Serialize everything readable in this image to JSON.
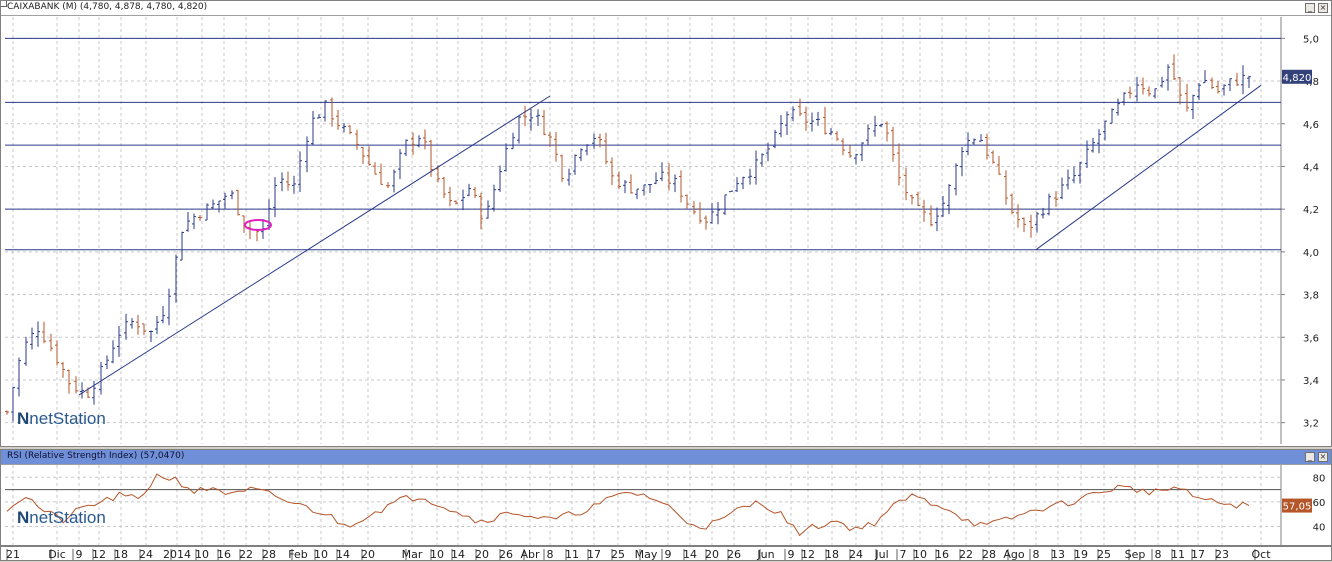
{
  "price_pane": {
    "title": "CAIXABANK (M) (4,780, 4,878, 4,780, 4,820)",
    "last_price_label": "4,820",
    "logo_text": "netStation",
    "price_ticks": [
      "5,0",
      "4,8",
      "4,6",
      "4,4",
      "4,2",
      "4,0",
      "3,8",
      "3,6",
      "3,4",
      "3,2"
    ]
  },
  "rsi_pane": {
    "title": "RSI (Relative Strength Index) (57,0470)",
    "last_value_label": "57,05",
    "logo_text": "netStation",
    "rsi_ticks": [
      "80",
      "60",
      "40"
    ]
  },
  "x_axis_labels": [
    "21",
    "Dic",
    "9",
    "12",
    "18",
    "24",
    "2014",
    "10",
    "16",
    "22",
    "28",
    "Feb",
    "10",
    "14",
    "20",
    "Mar",
    "10",
    "14",
    "20",
    "26",
    "Abr",
    "8",
    "11",
    "17",
    "25",
    "May",
    "9",
    "14",
    "20",
    "26",
    "Jun",
    "9",
    "12",
    "18",
    "24",
    "Jul",
    "7",
    "10",
    "16",
    "22",
    "28",
    "Ago",
    "8",
    "13",
    "19",
    "25",
    "Sep",
    "8",
    "11",
    "17",
    "23",
    "Oct"
  ],
  "colors": {
    "up_bar": "#2a3a8a",
    "down_bar": "#b5552a",
    "trend_line": "#2a3a8a",
    "rsi_line": "#b5552a",
    "price_marker_bg": "#33417a",
    "rsi_marker_bg": "#b5552a",
    "annotation": "#e020c0",
    "rsi_title_bar": "#6f8fd8"
  },
  "chart_data": [
    {
      "type": "ohlc",
      "title": "CAIXABANK (M) (4,780, 4,878, 4,780, 4,820)",
      "ylim": [
        3.1,
        5.1
      ],
      "yticks": [
        3.2,
        3.4,
        3.6,
        3.8,
        4.0,
        4.2,
        4.4,
        4.6,
        4.8,
        5.0
      ],
      "horizontal_lines": [
        5.0,
        4.7,
        4.5,
        4.2,
        4.01
      ],
      "close_path": [
        3.25,
        3.55,
        3.65,
        3.52,
        3.38,
        3.33,
        3.45,
        3.62,
        3.68,
        3.62,
        3.75,
        4.12,
        4.18,
        4.22,
        4.28,
        4.12,
        4.08,
        4.35,
        4.3,
        4.6,
        4.68,
        4.58,
        4.5,
        4.38,
        4.3,
        4.5,
        4.55,
        4.32,
        4.2,
        4.3,
        4.15,
        4.4,
        4.62,
        4.65,
        4.55,
        4.35,
        4.5,
        4.55,
        4.35,
        4.3,
        4.3,
        4.35,
        4.32,
        4.2,
        4.15,
        4.25,
        4.35,
        4.4,
        4.5,
        4.65,
        4.62,
        4.6,
        4.55,
        4.45,
        4.55,
        4.62,
        4.35,
        4.2,
        4.15,
        4.25,
        4.5,
        4.55,
        4.4,
        4.2,
        4.1,
        4.2,
        4.28,
        4.35,
        4.48,
        4.6,
        4.7,
        4.8,
        4.74,
        4.88,
        4.65,
        4.82,
        4.75,
        4.8,
        4.82
      ],
      "last": 4.82,
      "trend_lines": [
        {
          "from": {
            "x": "Dic 9",
            "y": 3.33
          },
          "to": {
            "x": "Abr 8",
            "y": 4.73
          }
        },
        {
          "from": {
            "x": "Ago 8",
            "y": 4.01
          },
          "to": {
            "x": "Oct",
            "y": 4.78
          }
        }
      ]
    },
    {
      "type": "line",
      "title": "RSI (Relative Strength Index) (57,0470)",
      "ylim": [
        25,
        90
      ],
      "yticks": [
        40,
        60,
        80
      ],
      "horizontal_lines": [
        70
      ],
      "path": [
        55,
        65,
        52,
        45,
        55,
        60,
        65,
        62,
        82,
        78,
        68,
        72,
        65,
        70,
        66,
        60,
        55,
        50,
        40,
        48,
        55,
        62,
        65,
        58,
        52,
        44,
        48,
        52,
        48,
        45,
        50,
        55,
        62,
        68,
        65,
        58,
        45,
        40,
        45,
        55,
        60,
        52,
        35,
        40,
        45,
        38,
        42,
        55,
        65,
        60,
        55,
        45,
        40,
        45,
        50,
        55,
        58,
        62,
        68,
        72,
        70,
        68,
        72,
        65,
        60,
        58,
        57
      ],
      "last": 57.05
    }
  ]
}
